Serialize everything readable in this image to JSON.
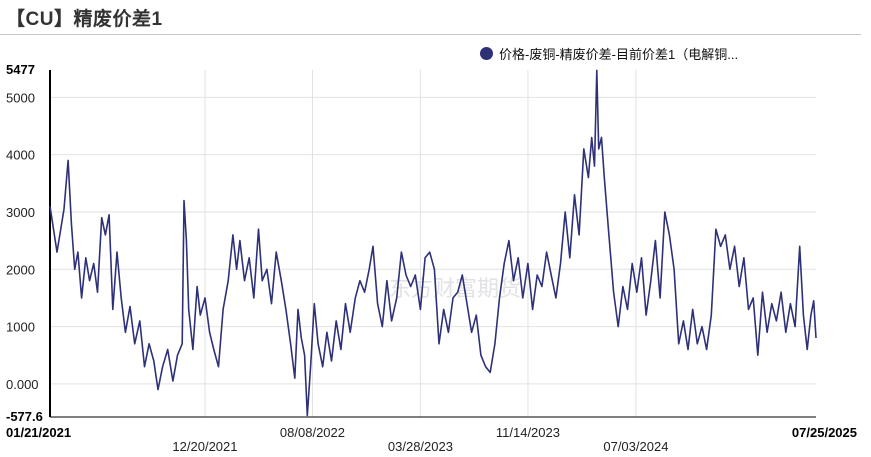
{
  "header": {
    "title": "【CU】精废价差1"
  },
  "legend": {
    "label": "价格-废铜-精废价差-目前价差1（电解铜..."
  },
  "watermark": "东方财富期货",
  "colors": {
    "series": "#2e3178",
    "grid": "#e2e2e2",
    "axis": "#000000"
  },
  "chart_data": {
    "type": "line",
    "title": "【CU】精废价差1",
    "xlabel": "",
    "ylabel": "",
    "ylim": [
      -577.6,
      5477
    ],
    "y_ticks": [
      {
        "value": -577.6,
        "label": "-577.6",
        "bold": true
      },
      {
        "value": 0,
        "label": "0.000",
        "bold": false
      },
      {
        "value": 1000,
        "label": "1000",
        "bold": false
      },
      {
        "value": 2000,
        "label": "2000",
        "bold": false
      },
      {
        "value": 3000,
        "label": "3000",
        "bold": false
      },
      {
        "value": 4000,
        "label": "4000",
        "bold": false
      },
      {
        "value": 5000,
        "label": "5000",
        "bold": false
      },
      {
        "value": 5477,
        "label": "5477",
        "bold": true
      }
    ],
    "x_ticks": [
      {
        "date": "2021-01-21",
        "label": "01/21/2021",
        "bold": true,
        "row": 0,
        "anchor": "start"
      },
      {
        "date": "2021-12-20",
        "label": "12/20/2021",
        "bold": false,
        "row": 1,
        "anchor": "middle"
      },
      {
        "date": "2022-08-08",
        "label": "08/08/2022",
        "bold": false,
        "row": 0,
        "anchor": "middle"
      },
      {
        "date": "2023-03-28",
        "label": "03/28/2023",
        "bold": false,
        "row": 1,
        "anchor": "middle"
      },
      {
        "date": "2023-11-14",
        "label": "11/14/2023",
        "bold": false,
        "row": 0,
        "anchor": "middle"
      },
      {
        "date": "2024-07-03",
        "label": "07/03/2024",
        "bold": false,
        "row": 1,
        "anchor": "middle"
      },
      {
        "date": "2025-07-25",
        "label": "07/25/2025",
        "bold": true,
        "row": 0,
        "anchor": "end"
      }
    ],
    "x_range": [
      "2021-01-21",
      "2025-07-25"
    ],
    "grid": true,
    "legend_position": "top-right",
    "series": [
      {
        "name": "价格-废铜-精废价差-目前价差1（电解铜...",
        "points": [
          [
            "2021-01-21",
            3100
          ],
          [
            "2021-02-05",
            2300
          ],
          [
            "2021-02-20",
            3050
          ],
          [
            "2021-03-01",
            3900
          ],
          [
            "2021-03-08",
            2800
          ],
          [
            "2021-03-15",
            2000
          ],
          [
            "2021-03-22",
            2300
          ],
          [
            "2021-03-30",
            1500
          ],
          [
            "2021-04-08",
            2200
          ],
          [
            "2021-04-16",
            1800
          ],
          [
            "2021-04-25",
            2100
          ],
          [
            "2021-05-03",
            1600
          ],
          [
            "2021-05-12",
            2900
          ],
          [
            "2021-05-20",
            2600
          ],
          [
            "2021-05-28",
            2950
          ],
          [
            "2021-06-05",
            1300
          ],
          [
            "2021-06-14",
            2300
          ],
          [
            "2021-06-23",
            1500
          ],
          [
            "2021-07-02",
            900
          ],
          [
            "2021-07-12",
            1350
          ],
          [
            "2021-07-22",
            700
          ],
          [
            "2021-08-02",
            1100
          ],
          [
            "2021-08-12",
            300
          ],
          [
            "2021-08-22",
            700
          ],
          [
            "2021-09-01",
            400
          ],
          [
            "2021-09-10",
            -100
          ],
          [
            "2021-09-20",
            300
          ],
          [
            "2021-10-01",
            600
          ],
          [
            "2021-10-12",
            50
          ],
          [
            "2021-10-22",
            500
          ],
          [
            "2021-11-01",
            700
          ],
          [
            "2021-11-05",
            3200
          ],
          [
            "2021-11-10",
            2500
          ],
          [
            "2021-11-15",
            1300
          ],
          [
            "2021-11-24",
            600
          ],
          [
            "2021-12-03",
            1700
          ],
          [
            "2021-12-10",
            1200
          ],
          [
            "2021-12-20",
            1500
          ],
          [
            "2021-12-30",
            900
          ],
          [
            "2022-01-08",
            600
          ],
          [
            "2022-01-18",
            300
          ],
          [
            "2022-01-28",
            1300
          ],
          [
            "2022-02-08",
            1800
          ],
          [
            "2022-02-18",
            2600
          ],
          [
            "2022-02-26",
            2000
          ],
          [
            "2022-03-05",
            2500
          ],
          [
            "2022-03-15",
            1800
          ],
          [
            "2022-03-25",
            2200
          ],
          [
            "2022-04-04",
            1500
          ],
          [
            "2022-04-14",
            2700
          ],
          [
            "2022-04-22",
            1800
          ],
          [
            "2022-05-02",
            2000
          ],
          [
            "2022-05-12",
            1400
          ],
          [
            "2022-05-22",
            2300
          ],
          [
            "2022-06-02",
            1800
          ],
          [
            "2022-06-12",
            1300
          ],
          [
            "2022-06-22",
            700
          ],
          [
            "2022-07-01",
            100
          ],
          [
            "2022-07-08",
            1300
          ],
          [
            "2022-07-15",
            800
          ],
          [
            "2022-07-22",
            500
          ],
          [
            "2022-07-28",
            -550
          ],
          [
            "2022-08-04",
            300
          ],
          [
            "2022-08-12",
            1400
          ],
          [
            "2022-08-20",
            700
          ],
          [
            "2022-08-30",
            300
          ],
          [
            "2022-09-08",
            900
          ],
          [
            "2022-09-18",
            400
          ],
          [
            "2022-09-28",
            1100
          ],
          [
            "2022-10-08",
            600
          ],
          [
            "2022-10-18",
            1400
          ],
          [
            "2022-10-28",
            900
          ],
          [
            "2022-11-08",
            1500
          ],
          [
            "2022-11-18",
            1800
          ],
          [
            "2022-11-28",
            1600
          ],
          [
            "2022-12-08",
            2000
          ],
          [
            "2022-12-16",
            2400
          ],
          [
            "2022-12-26",
            1400
          ],
          [
            "2023-01-05",
            1000
          ],
          [
            "2023-01-15",
            1800
          ],
          [
            "2023-01-25",
            1100
          ],
          [
            "2023-02-05",
            1500
          ],
          [
            "2023-02-15",
            2300
          ],
          [
            "2023-02-25",
            1900
          ],
          [
            "2023-03-07",
            1700
          ],
          [
            "2023-03-17",
            1900
          ],
          [
            "2023-03-28",
            1300
          ],
          [
            "2023-04-07",
            2200
          ],
          [
            "2023-04-17",
            2300
          ],
          [
            "2023-04-27",
            2000
          ],
          [
            "2023-05-07",
            700
          ],
          [
            "2023-05-17",
            1300
          ],
          [
            "2023-05-27",
            900
          ],
          [
            "2023-06-06",
            1500
          ],
          [
            "2023-06-16",
            1600
          ],
          [
            "2023-06-26",
            1900
          ],
          [
            "2023-07-06",
            1400
          ],
          [
            "2023-07-16",
            900
          ],
          [
            "2023-07-26",
            1200
          ],
          [
            "2023-08-05",
            500
          ],
          [
            "2023-08-15",
            300
          ],
          [
            "2023-08-25",
            200
          ],
          [
            "2023-09-04",
            700
          ],
          [
            "2023-09-14",
            1500
          ],
          [
            "2023-09-24",
            2100
          ],
          [
            "2023-10-04",
            2500
          ],
          [
            "2023-10-14",
            1800
          ],
          [
            "2023-10-24",
            2200
          ],
          [
            "2023-11-03",
            1500
          ],
          [
            "2023-11-14",
            2100
          ],
          [
            "2023-11-24",
            1300
          ],
          [
            "2023-12-04",
            1900
          ],
          [
            "2023-12-14",
            1700
          ],
          [
            "2023-12-24",
            2300
          ],
          [
            "2024-01-03",
            1900
          ],
          [
            "2024-01-13",
            1500
          ],
          [
            "2024-01-23",
            2100
          ],
          [
            "2024-02-02",
            3000
          ],
          [
            "2024-02-12",
            2200
          ],
          [
            "2024-02-22",
            3300
          ],
          [
            "2024-03-03",
            2600
          ],
          [
            "2024-03-13",
            4100
          ],
          [
            "2024-03-23",
            3600
          ],
          [
            "2024-03-30",
            4300
          ],
          [
            "2024-04-05",
            3800
          ],
          [
            "2024-04-10",
            5470
          ],
          [
            "2024-04-14",
            4100
          ],
          [
            "2024-04-20",
            4300
          ],
          [
            "2024-04-26",
            3600
          ],
          [
            "2024-05-06",
            2600
          ],
          [
            "2024-05-16",
            1600
          ],
          [
            "2024-05-26",
            1000
          ],
          [
            "2024-06-05",
            1700
          ],
          [
            "2024-06-15",
            1300
          ],
          [
            "2024-06-25",
            2100
          ],
          [
            "2024-07-05",
            1600
          ],
          [
            "2024-07-15",
            2200
          ],
          [
            "2024-07-25",
            1200
          ],
          [
            "2024-08-04",
            1800
          ],
          [
            "2024-08-14",
            2500
          ],
          [
            "2024-08-24",
            1500
          ],
          [
            "2024-09-03",
            3000
          ],
          [
            "2024-09-13",
            2600
          ],
          [
            "2024-09-23",
            2000
          ],
          [
            "2024-10-03",
            700
          ],
          [
            "2024-10-13",
            1100
          ],
          [
            "2024-10-23",
            600
          ],
          [
            "2024-11-02",
            1300
          ],
          [
            "2024-11-12",
            700
          ],
          [
            "2024-11-22",
            1000
          ],
          [
            "2024-12-02",
            600
          ],
          [
            "2024-12-12",
            1200
          ],
          [
            "2024-12-22",
            2700
          ],
          [
            "2025-01-01",
            2400
          ],
          [
            "2025-01-11",
            2600
          ],
          [
            "2025-01-21",
            2000
          ],
          [
            "2025-01-31",
            2400
          ],
          [
            "2025-02-10",
            1700
          ],
          [
            "2025-02-20",
            2200
          ],
          [
            "2025-03-02",
            1300
          ],
          [
            "2025-03-12",
            1500
          ],
          [
            "2025-03-22",
            500
          ],
          [
            "2025-04-01",
            1600
          ],
          [
            "2025-04-11",
            900
          ],
          [
            "2025-04-21",
            1400
          ],
          [
            "2025-05-01",
            1100
          ],
          [
            "2025-05-11",
            1600
          ],
          [
            "2025-05-21",
            900
          ],
          [
            "2025-05-31",
            1400
          ],
          [
            "2025-06-10",
            1000
          ],
          [
            "2025-06-20",
            2400
          ],
          [
            "2025-06-28",
            1200
          ],
          [
            "2025-07-06",
            600
          ],
          [
            "2025-07-14",
            1200
          ],
          [
            "2025-07-20",
            1450
          ],
          [
            "2025-07-25",
            800
          ]
        ]
      }
    ]
  }
}
